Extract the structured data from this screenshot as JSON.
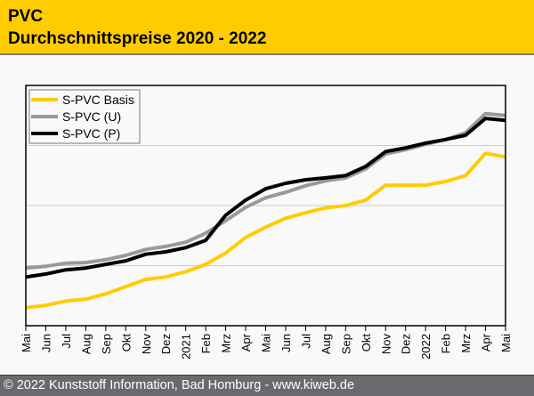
{
  "header": {
    "title": "PVC",
    "subtitle": "Durchschnittspreise 2020 - 2022"
  },
  "footer": {
    "text": "© 2022 Kunststoff Information, Bad Homburg - www.kiweb.de"
  },
  "colors": {
    "header_bg": "#ffcc00",
    "footer_bg": "#6a6a6e",
    "page_bg": "#f9f9f9"
  },
  "chart_data": {
    "type": "line",
    "title": "PVC Durchschnittspreise 2020 - 2022",
    "xlabel": "",
    "ylabel": "",
    "y_units": "relative (gridline divisions; no y-axis labels shown)",
    "ylim": [
      0,
      4
    ],
    "y_gridlines": [
      1,
      2,
      3
    ],
    "grid": true,
    "legend_position": "top-left",
    "x": [
      "Mai",
      "Jun",
      "Jul",
      "Aug",
      "Sep",
      "Okt",
      "Nov",
      "Dez",
      "2021",
      "Feb",
      "Mrz",
      "Apr",
      "Mai",
      "Jun",
      "Jul",
      "Aug",
      "Sep",
      "Okt",
      "Nov",
      "Dez",
      "2022",
      "Feb",
      "Mrz",
      "Apr",
      "Mai"
    ],
    "series": [
      {
        "name": "S-PVC Basis",
        "color": "#ffcc00",
        "values": [
          0.3,
          0.34,
          0.41,
          0.44,
          0.53,
          0.65,
          0.77,
          0.81,
          0.9,
          1.02,
          1.21,
          1.47,
          1.64,
          1.79,
          1.88,
          1.96,
          2.0,
          2.09,
          2.34,
          2.34,
          2.34,
          2.4,
          2.5,
          2.87,
          2.81
        ]
      },
      {
        "name": "S-PVC (U)",
        "color": "#999999",
        "values": [
          0.96,
          0.99,
          1.04,
          1.05,
          1.1,
          1.17,
          1.27,
          1.32,
          1.39,
          1.54,
          1.75,
          1.97,
          2.13,
          2.22,
          2.33,
          2.41,
          2.46,
          2.61,
          2.86,
          2.93,
          3.02,
          3.1,
          3.21,
          3.53,
          3.5
        ]
      },
      {
        "name": "S-PVC (P)",
        "color": "#000000",
        "values": [
          0.81,
          0.86,
          0.93,
          0.96,
          1.02,
          1.08,
          1.19,
          1.23,
          1.3,
          1.42,
          1.84,
          2.09,
          2.28,
          2.37,
          2.43,
          2.46,
          2.5,
          2.65,
          2.9,
          2.96,
          3.04,
          3.1,
          3.17,
          3.45,
          3.42
        ]
      }
    ]
  }
}
